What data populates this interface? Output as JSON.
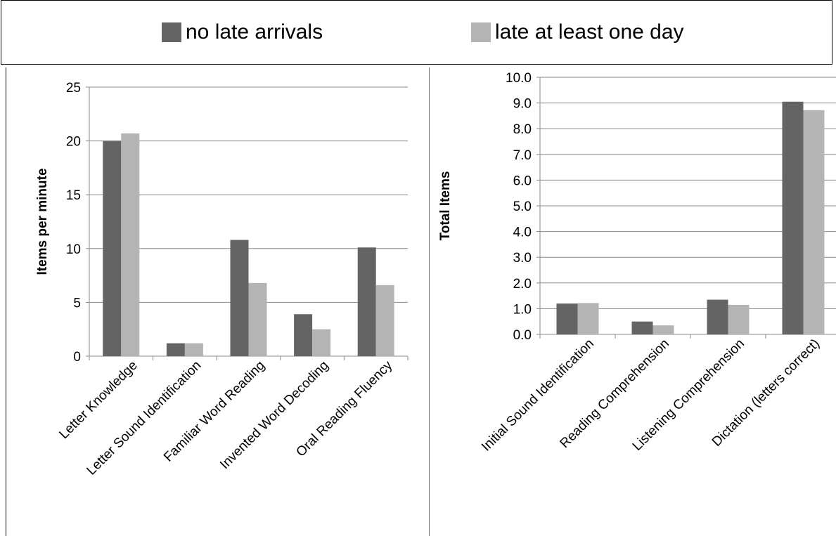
{
  "legend": {
    "items": [
      {
        "label": "no late arrivals",
        "color": "#646464"
      },
      {
        "label": "late at least one day",
        "color": "#b4b4b4"
      }
    ]
  },
  "chart_data": [
    {
      "type": "bar",
      "ylabel": "Items per minute",
      "ylim": [
        0,
        25
      ],
      "yticks": [
        "0",
        "5",
        "10",
        "15",
        "20",
        "25"
      ],
      "grid": true,
      "categories": [
        "Letter Knowledge",
        "Letter Sound Identification",
        "Familiar Word Reading",
        "Invented Word Decoding",
        "Oral Reading Fluency"
      ],
      "series": [
        {
          "name": "no late arrivals",
          "values": [
            20.0,
            1.2,
            10.8,
            3.9,
            10.1
          ]
        },
        {
          "name": "late at least one day",
          "values": [
            20.7,
            1.2,
            6.8,
            2.5,
            6.6
          ]
        }
      ]
    },
    {
      "type": "bar",
      "ylabel": "Total Items",
      "ylim": [
        0,
        10
      ],
      "yticks": [
        "0.0",
        "1.0",
        "2.0",
        "3.0",
        "4.0",
        "5.0",
        "6.0",
        "7.0",
        "8.0",
        "9.0",
        "10.0"
      ],
      "grid": true,
      "categories": [
        "Initial Sound Identification",
        "Reading Comprehension",
        "Listening Comprehension",
        "Dictation (letters correct)"
      ],
      "series": [
        {
          "name": "no late arrivals",
          "values": [
            1.2,
            0.5,
            1.35,
            9.05
          ]
        },
        {
          "name": "late at least one day",
          "values": [
            1.22,
            0.35,
            1.15,
            8.72
          ]
        }
      ]
    }
  ]
}
